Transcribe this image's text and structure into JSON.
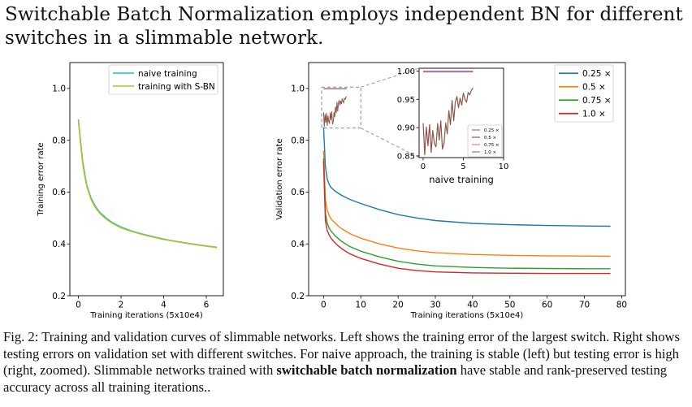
{
  "headline": "Switchable Batch Normalization employs independent BN for different switches in a slimmable network.",
  "caption": {
    "part1": "Fig. 2: Training and validation curves of  slimmable networks. Left shows the training error of  the largest switch. Right shows testing errors on validation set with different switches. For naive approach, the training is stable (left) but testing error is high (right, zoomed). Slimmable networks trained with ",
    "bold": "switchable batch normalization",
    "part2": " have stable and rank-preserved testing accuracy across all training iterations.."
  },
  "chart_data": [
    {
      "type": "line",
      "xlabel": "Training iterations (5x10e4)",
      "ylabel": "Training error rate",
      "xlim": [
        -0.4,
        6.8
      ],
      "ylim": [
        0.2,
        1.1
      ],
      "xticks": [
        0,
        2,
        4,
        6
      ],
      "yticks": [
        0.2,
        0.4,
        0.6,
        0.8,
        1.0
      ],
      "grid": false,
      "legend_position": "top-right",
      "series": [
        {
          "name": "naive training",
          "color": "#17becf",
          "x": [
            0,
            0.1,
            0.2,
            0.3,
            0.4,
            0.6,
            0.8,
            1.0,
            1.3,
            1.6,
            2.0,
            2.5,
            3.0,
            3.5,
            4.0,
            4.5,
            5.0,
            5.5,
            6.0,
            6.5
          ],
          "y": [
            0.88,
            0.8,
            0.72,
            0.67,
            0.625,
            0.575,
            0.545,
            0.522,
            0.5,
            0.482,
            0.465,
            0.45,
            0.438,
            0.428,
            0.419,
            0.411,
            0.404,
            0.398,
            0.392,
            0.387
          ]
        },
        {
          "name": "training with S-BN",
          "color": "#bcbd22",
          "x": [
            0,
            0.1,
            0.2,
            0.3,
            0.4,
            0.6,
            0.8,
            1.0,
            1.3,
            1.6,
            2.0,
            2.5,
            3.0,
            3.5,
            4.0,
            4.5,
            5.0,
            5.5,
            6.0,
            6.5
          ],
          "y": [
            0.875,
            0.79,
            0.71,
            0.66,
            0.62,
            0.57,
            0.54,
            0.518,
            0.496,
            0.479,
            0.462,
            0.448,
            0.436,
            0.426,
            0.417,
            0.41,
            0.403,
            0.397,
            0.391,
            0.386
          ]
        }
      ]
    },
    {
      "type": "line",
      "xlabel": "Training iterations (5x10e4)",
      "ylabel": "Validation error rate",
      "xlim": [
        -4,
        81
      ],
      "ylim": [
        0.2,
        1.1
      ],
      "xticks": [
        0,
        10,
        20,
        30,
        40,
        50,
        60,
        70,
        80
      ],
      "yticks": [
        0.2,
        0.4,
        0.6,
        0.8,
        1.0
      ],
      "grid": false,
      "legend_position": "top-right",
      "series": [
        {
          "name": "0.25 ×",
          "color": "#1f77b4",
          "x": [
            0,
            0.5,
            1,
            1.5,
            2,
            3,
            4,
            5,
            7,
            10,
            15,
            20,
            25,
            30,
            40,
            50,
            60,
            70,
            77
          ],
          "y": [
            0.85,
            0.7,
            0.65,
            0.63,
            0.618,
            0.605,
            0.595,
            0.586,
            0.572,
            0.556,
            0.532,
            0.513,
            0.5,
            0.49,
            0.479,
            0.474,
            0.471,
            0.469,
            0.468
          ]
        },
        {
          "name": "0.5 ×",
          "color": "#ff7f0e",
          "x": [
            0,
            0.5,
            1,
            1.5,
            2,
            3,
            4,
            5,
            7,
            10,
            15,
            20,
            25,
            30,
            40,
            50,
            60,
            70,
            77
          ],
          "y": [
            0.76,
            0.57,
            0.53,
            0.51,
            0.497,
            0.482,
            0.468,
            0.457,
            0.44,
            0.422,
            0.4,
            0.384,
            0.373,
            0.366,
            0.359,
            0.356,
            0.354,
            0.353,
            0.352
          ]
        },
        {
          "name": "0.75 ×",
          "color": "#2ca02c",
          "x": [
            0,
            0.5,
            1,
            1.5,
            2,
            3,
            4,
            5,
            7,
            10,
            15,
            20,
            25,
            30,
            40,
            50,
            60,
            70,
            77
          ],
          "y": [
            0.73,
            0.52,
            0.48,
            0.462,
            0.45,
            0.433,
            0.42,
            0.408,
            0.39,
            0.372,
            0.35,
            0.333,
            0.322,
            0.315,
            0.309,
            0.306,
            0.305,
            0.304,
            0.304
          ]
        },
        {
          "name": "1.0 ×",
          "color": "#d62728",
          "x": [
            0,
            0.5,
            1,
            1.5,
            2,
            3,
            4,
            5,
            7,
            10,
            15,
            20,
            25,
            30,
            40,
            50,
            60,
            70,
            77
          ],
          "y": [
            0.72,
            0.49,
            0.452,
            0.435,
            0.422,
            0.405,
            0.392,
            0.38,
            0.362,
            0.344,
            0.322,
            0.306,
            0.297,
            0.292,
            0.288,
            0.287,
            0.286,
            0.286,
            0.286
          ]
        }
      ]
    },
    {
      "type": "line",
      "role": "inset",
      "xlabel": "naive training",
      "xlim": [
        -0.5,
        10
      ],
      "ylim": [
        0.847,
        1.005
      ],
      "xticks": [
        0,
        5,
        10
      ],
      "yticks": [
        0.85,
        0.9,
        0.95,
        1.0
      ],
      "legend_position": "bottom-right",
      "series": [
        {
          "name": "0.25 ×",
          "color": "#9467bd",
          "x": [
            0,
            1,
            2,
            3,
            4,
            5,
            6.2
          ],
          "y": [
            0.999,
            0.999,
            0.999,
            0.999,
            0.999,
            0.999,
            0.999
          ]
        },
        {
          "name": "0.5 ×",
          "color": "#8c564b",
          "x": [
            0,
            0.2,
            0.4,
            0.6,
            0.8,
            1.0,
            1.2,
            1.4,
            1.6,
            1.8,
            2.0,
            2.2,
            2.4,
            2.6,
            2.8,
            3.0,
            3.2,
            3.4,
            3.6,
            3.8,
            4.0,
            4.2,
            4.4,
            4.6,
            4.8,
            5.0,
            5.2,
            5.4,
            5.6,
            5.8,
            6.0,
            6.2
          ],
          "y": [
            0.908,
            0.852,
            0.901,
            0.868,
            0.905,
            0.856,
            0.895,
            0.872,
            0.866,
            0.907,
            0.878,
            0.912,
            0.862,
            0.872,
            0.908,
            0.889,
            0.93,
            0.905,
            0.948,
            0.912,
            0.945,
            0.955,
            0.935,
            0.952,
            0.94,
            0.961,
            0.95,
            0.945,
            0.962,
            0.958,
            0.966,
            0.97
          ]
        },
        {
          "name": "0.75 ×",
          "color": "#e377c2",
          "x": [
            0,
            1,
            2,
            3,
            4,
            5,
            6.2
          ],
          "y": [
            1.0,
            1.0,
            1.0,
            1.0,
            1.0,
            1.0,
            1.0
          ]
        },
        {
          "name": "1.0 ×",
          "color": "#7f7f7f",
          "x": [
            0,
            1,
            2,
            3,
            4,
            5,
            6.2
          ],
          "y": [
            0.9985,
            0.9985,
            0.9985,
            0.9985,
            0.9985,
            0.9985,
            0.9985
          ]
        }
      ]
    }
  ]
}
